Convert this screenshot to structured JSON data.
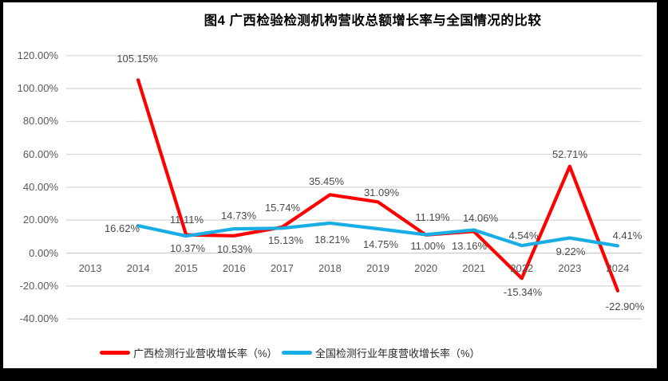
{
  "chart_data": {
    "type": "line",
    "title": "图4 广西检验检测机构营收总额增长率与全国情况的比较",
    "categories": [
      "2013",
      "2014",
      "2015",
      "2016",
      "2017",
      "2018",
      "2019",
      "2020",
      "2021",
      "2022",
      "2023",
      "2024"
    ],
    "y_ticks": [
      "120.00%",
      "100.00%",
      "80.00%",
      "60.00%",
      "40.00%",
      "20.00%",
      "0.00%",
      "-20.00%",
      "-40.00%"
    ],
    "ylim": [
      -40,
      120
    ],
    "grid": true,
    "legend_position": "bottom",
    "series": [
      {
        "name": "广西检测行业营收增长率（%）",
        "color": "#fe0000",
        "values": [
          null,
          105.15,
          11.11,
          10.53,
          15.74,
          35.45,
          31.09,
          11.0,
          13.16,
          -15.34,
          52.71,
          -22.9
        ],
        "labels": [
          null,
          "105.15%",
          "11.11%",
          "10.53%",
          "15.74%",
          "35.45%",
          "31.09%",
          "11.00%",
          "13.16%",
          "-15.34%",
          "52.71%",
          "-22.90%"
        ]
      },
      {
        "name": "全国检测行业年度营收增长率（%）",
        "color": "#18ade3",
        "values": [
          null,
          16.62,
          10.37,
          14.73,
          15.13,
          18.21,
          14.75,
          11.19,
          14.06,
          4.54,
          9.22,
          4.41
        ],
        "labels": [
          null,
          "16.62%",
          "10.37%",
          "14.73%",
          "15.13%",
          "18.21%",
          "14.75%",
          "11.19%",
          "14.06%",
          "4.54%",
          "9.22%",
          "4.41%"
        ]
      }
    ]
  },
  "legend": {
    "items": [
      {
        "label": "广西检测行业营收增长率（%）",
        "color": "#fe0000"
      },
      {
        "label": "全国检测行业年度营收增长率（%）",
        "color": "#18ade3"
      }
    ]
  }
}
